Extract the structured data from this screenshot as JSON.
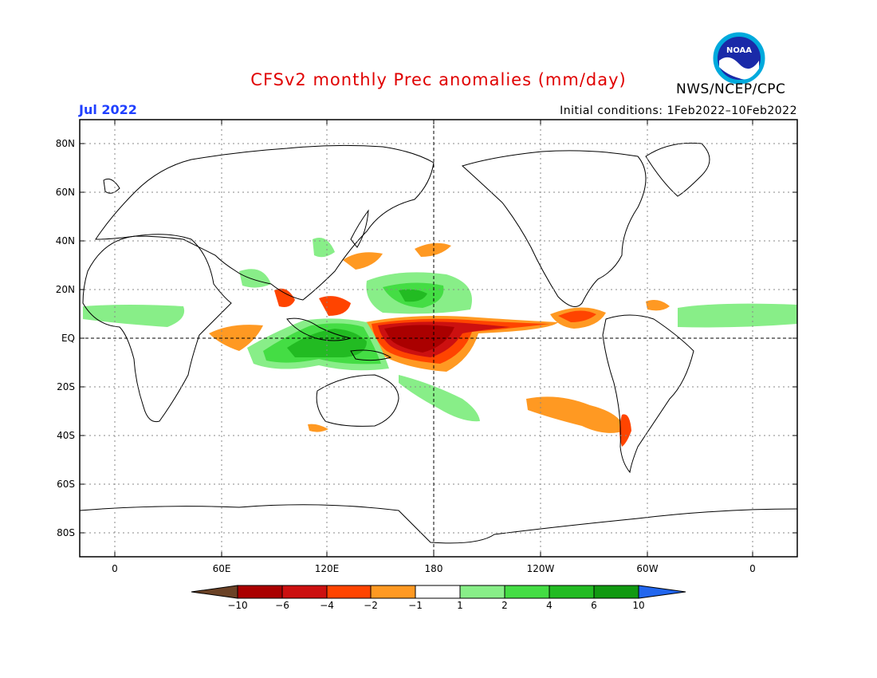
{
  "header": {
    "title": "CFSv2 monthly Prec anomalies (mm/day)",
    "month": "Jul 2022",
    "initial_conditions": "Initial conditions: 1Feb2022–10Feb2022",
    "agency": "NWS/NCEP/CPC",
    "logo_icon": "noaa-logo-icon",
    "logo_text": "NOAA"
  },
  "map": {
    "projection": "cylindrical",
    "lat_labels": [
      "80N",
      "60N",
      "40N",
      "20N",
      "EQ",
      "20S",
      "40S",
      "60S",
      "80S"
    ],
    "lon_labels": [
      "0",
      "60E",
      "120E",
      "180",
      "120W",
      "60W",
      "0"
    ]
  },
  "colorbar": {
    "labels": [
      "−10",
      "−6",
      "−4",
      "−2",
      "−1",
      "1",
      "2",
      "4",
      "6",
      "10"
    ],
    "colors": [
      "#6b4226",
      "#aa0000",
      "#cc1010",
      "#ff4400",
      "#ff9922",
      "#ffffff",
      "#88ee88",
      "#44dd44",
      "#22bb22",
      "#119911",
      "#2266ee"
    ]
  }
}
